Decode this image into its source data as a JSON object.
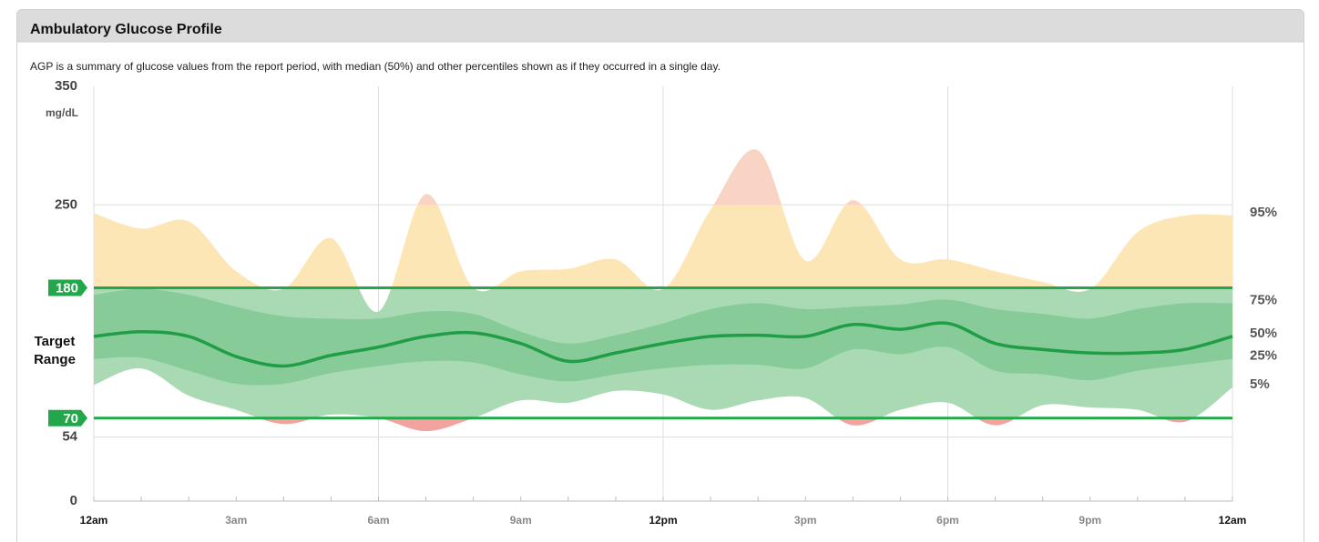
{
  "chart_data": {
    "type": "agp",
    "title": "Ambulatory Glucose Profile",
    "subtitle": "AGP is a summary of glucose values from the report period, with median (50%) and other percentiles shown as if they occurred in a single day.",
    "y_unit": "mg/dL",
    "x": [
      0,
      1,
      2,
      3,
      4,
      5,
      6,
      7,
      8,
      9,
      10,
      11,
      12,
      13,
      14,
      15,
      16,
      17,
      18,
      19,
      20,
      21,
      22,
      23,
      24
    ],
    "xlim": [
      0,
      24
    ],
    "xticks": [
      {
        "value": 0,
        "label": "12am"
      },
      {
        "value": 3,
        "label": "3am"
      },
      {
        "value": 6,
        "label": "6am"
      },
      {
        "value": 9,
        "label": "9am"
      },
      {
        "value": 12,
        "label": "12pm"
      },
      {
        "value": 15,
        "label": "3pm"
      },
      {
        "value": 18,
        "label": "6pm"
      },
      {
        "value": 21,
        "label": "9pm"
      },
      {
        "value": 24,
        "label": "12am"
      }
    ],
    "ylim": [
      0,
      350
    ],
    "yticks": [
      0,
      54,
      70,
      180,
      250,
      350
    ],
    "target_range": {
      "label": "Target Range",
      "low": 70,
      "high": 180
    },
    "series": [
      {
        "name": "95%",
        "values": [
          243,
          230,
          236,
          194,
          179,
          222,
          160,
          259,
          180,
          194,
          196,
          204,
          179,
          246,
          296,
          203,
          254,
          204,
          204,
          194,
          185,
          179,
          227,
          241,
          241
        ]
      },
      {
        "name": "75%",
        "values": [
          174,
          179,
          174,
          164,
          156,
          154,
          154,
          160,
          158,
          143,
          133,
          140,
          150,
          162,
          167,
          162,
          164,
          166,
          170,
          162,
          158,
          154,
          162,
          167,
          167
        ]
      },
      {
        "name": "50%",
        "color": "#1f9e45",
        "values": [
          139,
          143,
          139,
          122,
          114,
          123,
          130,
          139,
          142,
          133,
          118,
          125,
          133,
          139,
          140,
          139,
          149,
          145,
          150,
          133,
          128,
          125,
          125,
          128,
          139
        ]
      },
      {
        "name": "25%",
        "values": [
          120,
          121,
          110,
          99,
          99,
          108,
          114,
          118,
          117,
          107,
          101,
          107,
          112,
          115,
          115,
          112,
          128,
          124,
          130,
          110,
          107,
          102,
          110,
          115,
          120
        ]
      },
      {
        "name": "5%",
        "values": [
          98,
          112,
          89,
          77,
          65,
          73,
          70,
          59,
          70,
          85,
          83,
          93,
          90,
          77,
          85,
          87,
          64,
          77,
          83,
          64,
          81,
          79,
          77,
          67,
          96
        ]
      }
    ]
  }
}
